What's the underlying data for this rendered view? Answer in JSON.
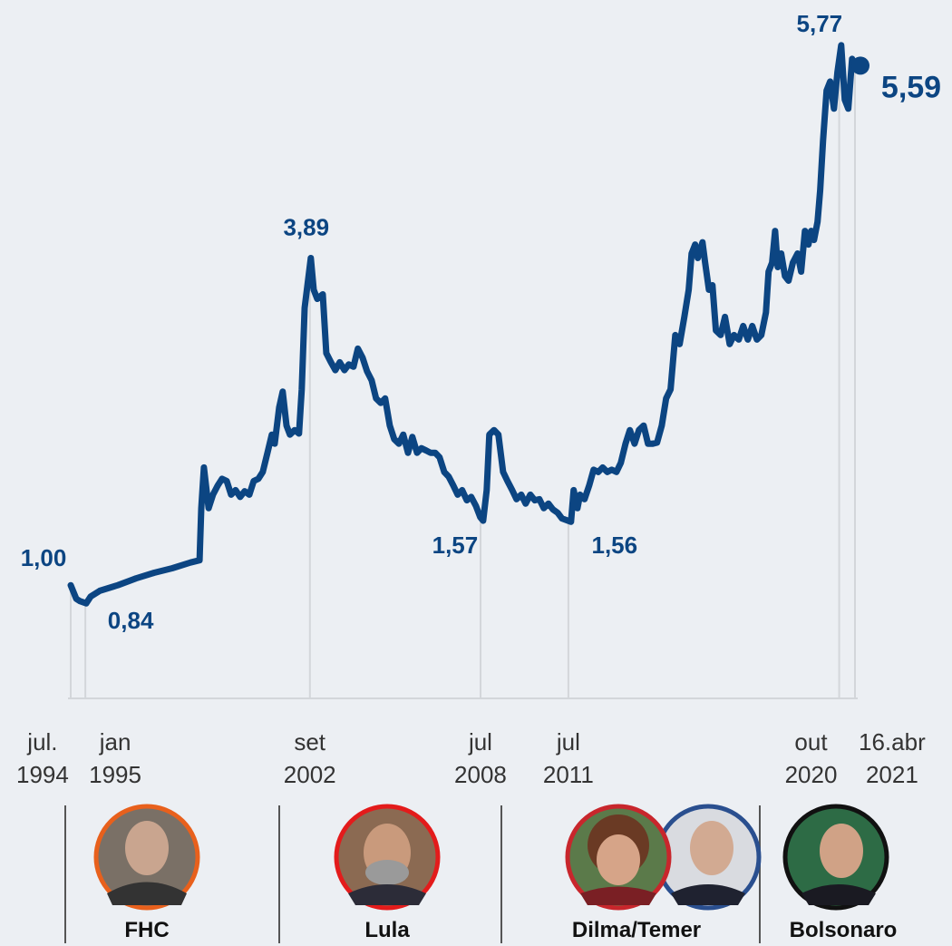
{
  "chart_data": {
    "type": "line",
    "color": "#0c4582",
    "x": [
      1994.5,
      1994.69,
      1994.81,
      1995.03,
      1995.18,
      1995.49,
      1996.11,
      1996.73,
      1997.35,
      1997.97,
      1998.59,
      1998.9,
      1998.96,
      1999.05,
      1999.21,
      1999.36,
      1999.52,
      1999.67,
      1999.83,
      1999.98,
      2000.13,
      2000.29,
      2000.44,
      2000.6,
      2000.75,
      2000.91,
      2001.06,
      2001.22,
      2001.37,
      2001.47,
      2001.62,
      2001.74,
      2001.87,
      2001.99,
      2002.15,
      2002.3,
      2002.39,
      2002.49,
      2002.7,
      2002.8,
      2002.92,
      2003.11,
      2003.23,
      2003.39,
      2003.54,
      2003.69,
      2003.85,
      2004.0,
      2004.16,
      2004.31,
      2004.47,
      2004.62,
      2004.78,
      2004.93,
      2005.09,
      2005.24,
      2005.4,
      2005.55,
      2005.71,
      2005.86,
      2006.02,
      2006.17,
      2006.33,
      2006.48,
      2006.64,
      2006.79,
      2006.95,
      2007.1,
      2007.26,
      2007.41,
      2007.57,
      2007.72,
      2007.87,
      2008.03,
      2008.18,
      2008.34,
      2008.49,
      2008.59,
      2008.71,
      2008.8,
      2008.96,
      2009.11,
      2009.27,
      2009.42,
      2009.58,
      2009.73,
      2009.89,
      2010.04,
      2010.2,
      2010.35,
      2010.51,
      2010.66,
      2010.82,
      2010.97,
      2011.13,
      2011.28,
      2011.59,
      2011.68,
      2011.81,
      2011.9,
      2012.05,
      2012.21,
      2012.36,
      2012.52,
      2012.67,
      2012.83,
      2012.98,
      2013.14,
      2013.29,
      2013.45,
      2013.6,
      2013.76,
      2013.91,
      2014.07,
      2014.22,
      2014.38,
      2014.53,
      2014.69,
      2014.84,
      2014.99,
      2015.15,
      2015.3,
      2015.46,
      2015.61,
      2015.71,
      2015.83,
      2015.92,
      2016.08,
      2016.17,
      2016.3,
      2016.42,
      2016.54,
      2016.7,
      2016.85,
      2017.01,
      2017.16,
      2017.32,
      2017.47,
      2017.63,
      2017.78,
      2017.94,
      2018.09,
      2018.25,
      2018.34,
      2018.46,
      2018.56,
      2018.65,
      2018.77,
      2018.9,
      2019.02,
      2019.17,
      2019.33,
      2019.45,
      2019.58,
      2019.7,
      2019.79,
      2019.89,
      2020.01,
      2020.1,
      2020.2,
      2020.32,
      2020.44,
      2020.57,
      2020.69,
      2020.82,
      2020.94,
      2021.06,
      2021.19,
      2021.29
    ],
    "values": [
      1.0,
      0.88,
      0.86,
      0.84,
      0.9,
      0.95,
      1.0,
      1.06,
      1.11,
      1.15,
      1.2,
      1.22,
      1.68,
      2.04,
      1.68,
      1.8,
      1.88,
      1.94,
      1.92,
      1.8,
      1.84,
      1.78,
      1.83,
      1.8,
      1.92,
      1.94,
      2.0,
      2.17,
      2.33,
      2.25,
      2.57,
      2.71,
      2.41,
      2.33,
      2.37,
      2.34,
      2.73,
      3.45,
      3.89,
      3.61,
      3.53,
      3.57,
      3.05,
      2.97,
      2.9,
      2.97,
      2.9,
      2.95,
      2.93,
      3.09,
      3.01,
      2.89,
      2.81,
      2.65,
      2.61,
      2.65,
      2.41,
      2.29,
      2.25,
      2.33,
      2.17,
      2.31,
      2.17,
      2.21,
      2.19,
      2.17,
      2.17,
      2.13,
      2.0,
      1.96,
      1.88,
      1.8,
      1.84,
      1.75,
      1.78,
      1.7,
      1.6,
      1.57,
      1.84,
      2.33,
      2.37,
      2.33,
      2.0,
      1.92,
      1.84,
      1.76,
      1.8,
      1.72,
      1.8,
      1.75,
      1.76,
      1.68,
      1.72,
      1.67,
      1.64,
      1.59,
      1.56,
      1.84,
      1.68,
      1.8,
      1.76,
      1.88,
      2.02,
      2.0,
      2.04,
      2.0,
      2.02,
      2.0,
      2.08,
      2.25,
      2.37,
      2.25,
      2.37,
      2.41,
      2.25,
      2.25,
      2.26,
      2.41,
      2.65,
      2.73,
      3.21,
      3.13,
      3.37,
      3.61,
      3.93,
      4.01,
      3.89,
      4.03,
      3.85,
      3.61,
      3.65,
      3.25,
      3.21,
      3.37,
      3.13,
      3.21,
      3.17,
      3.29,
      3.17,
      3.29,
      3.17,
      3.21,
      3.41,
      3.77,
      3.85,
      4.13,
      3.81,
      3.93,
      3.73,
      3.69,
      3.85,
      3.93,
      3.77,
      4.13,
      4.01,
      4.13,
      4.05,
      4.21,
      4.49,
      4.93,
      5.37,
      5.45,
      5.21,
      5.53,
      5.77,
      5.29,
      5.21,
      5.65,
      5.59
    ],
    "xlim": [
      1994.5,
      2021.29
    ],
    "ylim": [
      0,
      6.17
    ],
    "xticks": [
      {
        "value": 1994.5,
        "label": "jul. 1994"
      },
      {
        "value": 1995.0,
        "label": "jan 1995"
      },
      {
        "value": 2002.67,
        "label": "set 2002"
      },
      {
        "value": 2008.5,
        "label": "jul 2008"
      },
      {
        "value": 2011.5,
        "label": "jul 2011"
      },
      {
        "value": 2020.75,
        "label": "out 2020"
      },
      {
        "value": 2021.29,
        "label": "16.abr 2021"
      }
    ],
    "annotations": [
      {
        "x": 1994.5,
        "value": 1.0,
        "label": "1,00"
      },
      {
        "x": 1995.03,
        "value": 0.84,
        "label": "0,84"
      },
      {
        "x": 2002.7,
        "value": 3.89,
        "label": "3,89"
      },
      {
        "x": 2008.59,
        "value": 1.57,
        "label": "1,57"
      },
      {
        "x": 2011.59,
        "value": 1.56,
        "label": "1,56"
      },
      {
        "x": 2020.82,
        "value": 5.77,
        "label": "5,77"
      },
      {
        "x": 2021.29,
        "value": 5.59,
        "label": "5,59"
      }
    ]
  },
  "presidents": [
    {
      "name": "FHC"
    },
    {
      "name": "Lula"
    },
    {
      "name": "Dilma/Temer"
    },
    {
      "name": "Bolsonaro"
    }
  ]
}
